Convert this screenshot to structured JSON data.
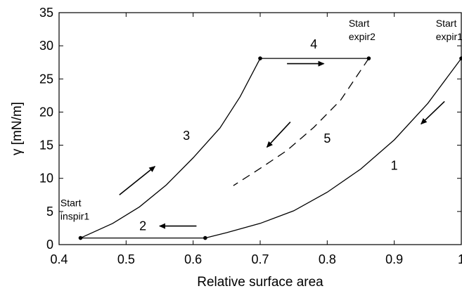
{
  "chart_data": {
    "type": "line",
    "xlabel": "Relative surface area",
    "ylabel": "γ [mN/m]",
    "xlim": [
      0.4,
      1.0
    ],
    "ylim": [
      0,
      35
    ],
    "xticks": [
      "0.4",
      "0.5",
      "0.6",
      "0.7",
      "0.8",
      "0.9",
      "1"
    ],
    "yticks": [
      "0",
      "5",
      "10",
      "15",
      "20",
      "25",
      "30",
      "35"
    ],
    "grid": false,
    "series": [
      {
        "name": "1",
        "style": "solid",
        "points": [
          [
            1.0,
            28.1
          ],
          [
            0.95,
            21.3
          ],
          [
            0.9,
            15.8
          ],
          [
            0.85,
            11.4
          ],
          [
            0.8,
            7.9
          ],
          [
            0.75,
            5.1
          ],
          [
            0.7,
            3.2
          ],
          [
            0.65,
            1.8
          ],
          [
            0.618,
            1.0
          ]
        ]
      },
      {
        "name": "2",
        "style": "solid",
        "points": [
          [
            0.618,
            1.0
          ],
          [
            0.432,
            1.0
          ]
        ]
      },
      {
        "name": "3",
        "style": "solid",
        "points": [
          [
            0.432,
            1.0
          ],
          [
            0.48,
            3.2
          ],
          [
            0.52,
            5.7
          ],
          [
            0.56,
            9.0
          ],
          [
            0.6,
            13.1
          ],
          [
            0.64,
            17.6
          ],
          [
            0.67,
            22.3
          ],
          [
            0.7,
            28.1
          ]
        ]
      },
      {
        "name": "4",
        "style": "solid",
        "points": [
          [
            0.7,
            28.1
          ],
          [
            0.862,
            28.1
          ]
        ]
      },
      {
        "name": "5",
        "style": "dashed",
        "points": [
          [
            0.862,
            28.1
          ],
          [
            0.82,
            21.8
          ],
          [
            0.78,
            17.7
          ],
          [
            0.74,
            14.2
          ],
          [
            0.7,
            11.5
          ],
          [
            0.66,
            8.9
          ]
        ]
      }
    ],
    "markers": [
      [
        0.432,
        1.0
      ],
      [
        0.618,
        1.0
      ],
      [
        0.7,
        28.1
      ],
      [
        0.862,
        28.1
      ],
      [
        1.0,
        28.1
      ]
    ],
    "curve_labels": [
      {
        "text": "1",
        "x": 0.9,
        "y": 11.3
      },
      {
        "text": "2",
        "x": 0.525,
        "y": 2.2
      },
      {
        "text": "3",
        "x": 0.59,
        "y": 15.8
      },
      {
        "text": "4",
        "x": 0.78,
        "y": 29.6
      },
      {
        "text": "5",
        "x": 0.8,
        "y": 15.4
      }
    ],
    "annotations": [
      {
        "lines": [
          "Start",
          "inspir1"
        ],
        "x": 0.402,
        "y": 5.8
      },
      {
        "lines": [
          "Start",
          "expir2"
        ],
        "x": 0.832,
        "y": 32.9
      },
      {
        "lines": [
          "Start",
          "expir1"
        ],
        "x": 0.962,
        "y": 32.9
      }
    ],
    "arrows": [
      {
        "from": [
          0.49,
          7.5
        ],
        "to": [
          0.543,
          11.8
        ]
      },
      {
        "from": [
          0.605,
          2.8
        ],
        "to": [
          0.55,
          2.8
        ]
      },
      {
        "from": [
          0.74,
          27.3
        ],
        "to": [
          0.795,
          27.3
        ]
      },
      {
        "from": [
          0.745,
          18.5
        ],
        "to": [
          0.71,
          14.7
        ]
      },
      {
        "from": [
          0.975,
          21.6
        ],
        "to": [
          0.94,
          18.2
        ]
      }
    ]
  }
}
